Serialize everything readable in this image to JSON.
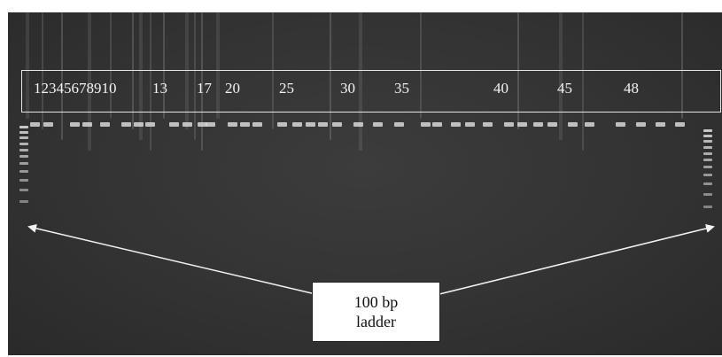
{
  "lane_labels": {
    "group_1_10": "12345678910",
    "lane_13": "13",
    "lane_17": "17",
    "lane_20": "20",
    "lane_25": "25",
    "lane_30": "30",
    "lane_35": "35",
    "lane_40": "40",
    "lane_45": "45",
    "lane_48": "48"
  },
  "callout": {
    "line1": "100 bp",
    "line2": "ladder"
  },
  "colors": {
    "gel_background": "#363636",
    "band": "#d8d8d8",
    "annotation": "#f2f2f2"
  }
}
